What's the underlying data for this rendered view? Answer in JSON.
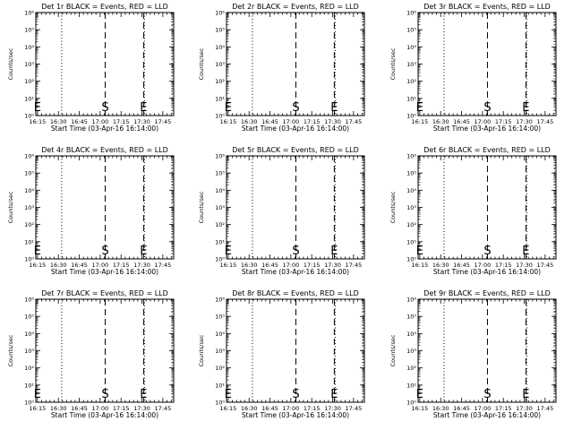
{
  "figure": {
    "background": "#ffffff",
    "ink": "#000000"
  },
  "chart_data": [
    {
      "type": "line",
      "title": "Det 1r BLACK = Events, RED = LLD",
      "xlabel": "Start Time (03-Apr-16 16:14:00)",
      "ylabel": "Counts/sec",
      "x_tick_labels": [
        "16:15",
        "16:30",
        "16:45",
        "17:00",
        "17:15",
        "17:30",
        "17:45"
      ],
      "x_ticks_minutes": [
        16.25,
        16.5,
        16.75,
        17.0,
        17.25,
        17.5,
        17.75
      ],
      "xlim": [
        16.23,
        17.88
      ],
      "y_scale": "log",
      "ylim": [
        1,
        1000000.0
      ],
      "y_tick_labels": [
        "10⁰",
        "10¹",
        "10²",
        "10³",
        "10⁴",
        "10⁵",
        "10⁶"
      ],
      "dotted_lines": [
        16.54,
        17.53,
        17.86
      ],
      "dashed_lines": [
        17.06,
        17.52
      ],
      "markers": [
        {
          "label": "E",
          "x": 16.25
        },
        {
          "label": "S",
          "x": 17.06
        },
        {
          "label": "E",
          "x": 17.52
        }
      ],
      "series": []
    },
    {
      "type": "line",
      "title": "Det 2r BLACK = Events, RED = LLD",
      "xlabel": "Start Time (03-Apr-16 16:14:00)",
      "ylabel": "Counts/sec",
      "x_tick_labels": [
        "16:15",
        "16:30",
        "16:45",
        "17:00",
        "17:15",
        "17:30",
        "17:45"
      ],
      "x_ticks_minutes": [
        16.25,
        16.5,
        16.75,
        17.0,
        17.25,
        17.5,
        17.75
      ],
      "xlim": [
        16.23,
        17.88
      ],
      "y_scale": "log",
      "ylim": [
        1,
        1000000.0
      ],
      "y_tick_labels": [
        "10⁰",
        "10¹",
        "10²",
        "10³",
        "10⁴",
        "10⁵",
        "10⁶"
      ],
      "dotted_lines": [
        16.54,
        17.53,
        17.86
      ],
      "dashed_lines": [
        17.06,
        17.52
      ],
      "markers": [
        {
          "label": "E",
          "x": 16.25
        },
        {
          "label": "S",
          "x": 17.06
        },
        {
          "label": "E",
          "x": 17.52
        }
      ],
      "series": []
    },
    {
      "type": "line",
      "title": "Det 3r BLACK = Events, RED = LLD",
      "xlabel": "Start Time (03-Apr-16 16:14:00)",
      "ylabel": "Counts/sec",
      "x_tick_labels": [
        "16:15",
        "16:30",
        "16:45",
        "17:00",
        "17:15",
        "17:30",
        "17:45"
      ],
      "x_ticks_minutes": [
        16.25,
        16.5,
        16.75,
        17.0,
        17.25,
        17.5,
        17.75
      ],
      "xlim": [
        16.23,
        17.88
      ],
      "y_scale": "log",
      "ylim": [
        1,
        1000000.0
      ],
      "y_tick_labels": [
        "10⁰",
        "10¹",
        "10²",
        "10³",
        "10⁴",
        "10⁵",
        "10⁶"
      ],
      "dotted_lines": [
        16.54,
        17.53,
        17.86
      ],
      "dashed_lines": [
        17.06,
        17.52
      ],
      "markers": [
        {
          "label": "E",
          "x": 16.25
        },
        {
          "label": "S",
          "x": 17.06
        },
        {
          "label": "E",
          "x": 17.52
        }
      ],
      "series": []
    },
    {
      "type": "line",
      "title": "Det 4r BLACK = Events, RED = LLD",
      "xlabel": "Start Time (03-Apr-16 16:14:00)",
      "ylabel": "Counts/sec",
      "x_tick_labels": [
        "16:15",
        "16:30",
        "16:45",
        "17:00",
        "17:15",
        "17:30",
        "17:45"
      ],
      "x_ticks_minutes": [
        16.25,
        16.5,
        16.75,
        17.0,
        17.25,
        17.5,
        17.75
      ],
      "xlim": [
        16.23,
        17.88
      ],
      "y_scale": "log",
      "ylim": [
        1,
        1000000.0
      ],
      "y_tick_labels": [
        "10⁰",
        "10¹",
        "10²",
        "10³",
        "10⁴",
        "10⁵",
        "10⁶"
      ],
      "dotted_lines": [
        16.54,
        17.53,
        17.86
      ],
      "dashed_lines": [
        17.06,
        17.52
      ],
      "markers": [
        {
          "label": "E",
          "x": 16.25
        },
        {
          "label": "S",
          "x": 17.06
        },
        {
          "label": "E",
          "x": 17.52
        }
      ],
      "series": []
    },
    {
      "type": "line",
      "title": "Det 5r BLACK = Events, RED = LLD",
      "xlabel": "Start Time (03-Apr-16 16:14:00)",
      "ylabel": "Counts/sec",
      "x_tick_labels": [
        "16:15",
        "16:30",
        "16:45",
        "17:00",
        "17:15",
        "17:30",
        "17:45"
      ],
      "x_ticks_minutes": [
        16.25,
        16.5,
        16.75,
        17.0,
        17.25,
        17.5,
        17.75
      ],
      "xlim": [
        16.23,
        17.88
      ],
      "y_scale": "log",
      "ylim": [
        1,
        1000000.0
      ],
      "y_tick_labels": [
        "10⁰",
        "10¹",
        "10²",
        "10³",
        "10⁴",
        "10⁵",
        "10⁶"
      ],
      "dotted_lines": [
        16.54,
        17.53,
        17.86
      ],
      "dashed_lines": [
        17.06,
        17.52
      ],
      "markers": [
        {
          "label": "E",
          "x": 16.25
        },
        {
          "label": "S",
          "x": 17.06
        },
        {
          "label": "E",
          "x": 17.52
        }
      ],
      "series": []
    },
    {
      "type": "line",
      "title": "Det 6r BLACK = Events, RED = LLD",
      "xlabel": "Start Time (03-Apr-16 16:14:00)",
      "ylabel": "Counts/sec",
      "x_tick_labels": [
        "16:15",
        "16:30",
        "16:45",
        "17:00",
        "17:15",
        "17:30",
        "17:45"
      ],
      "x_ticks_minutes": [
        16.25,
        16.5,
        16.75,
        17.0,
        17.25,
        17.5,
        17.75
      ],
      "xlim": [
        16.23,
        17.88
      ],
      "y_scale": "log",
      "ylim": [
        1,
        1000000.0
      ],
      "y_tick_labels": [
        "10⁰",
        "10¹",
        "10²",
        "10³",
        "10⁴",
        "10⁵",
        "10⁶"
      ],
      "dotted_lines": [
        16.54,
        17.53,
        17.86
      ],
      "dashed_lines": [
        17.06,
        17.52
      ],
      "markers": [
        {
          "label": "E",
          "x": 16.25
        },
        {
          "label": "S",
          "x": 17.06
        },
        {
          "label": "E",
          "x": 17.52
        }
      ],
      "series": []
    },
    {
      "type": "line",
      "title": "Det 7r BLACK = Events, RED = LLD",
      "xlabel": "Start Time (03-Apr-16 16:14:00)",
      "ylabel": "Counts/sec",
      "x_tick_labels": [
        "16:15",
        "16:30",
        "16:45",
        "17:00",
        "17:15",
        "17:30",
        "17:45"
      ],
      "x_ticks_minutes": [
        16.25,
        16.5,
        16.75,
        17.0,
        17.25,
        17.5,
        17.75
      ],
      "xlim": [
        16.23,
        17.88
      ],
      "y_scale": "log",
      "ylim": [
        1,
        1000000.0
      ],
      "y_tick_labels": [
        "10⁰",
        "10¹",
        "10²",
        "10³",
        "10⁴",
        "10⁵",
        "10⁶"
      ],
      "dotted_lines": [
        16.54,
        17.53,
        17.86
      ],
      "dashed_lines": [
        17.06,
        17.52
      ],
      "markers": [
        {
          "label": "E",
          "x": 16.25
        },
        {
          "label": "S",
          "x": 17.06
        },
        {
          "label": "E",
          "x": 17.52
        }
      ],
      "series": []
    },
    {
      "type": "line",
      "title": "Det 8r BLACK = Events, RED = LLD",
      "xlabel": "Start Time (03-Apr-16 16:14:00)",
      "ylabel": "Counts/sec",
      "x_tick_labels": [
        "16:15",
        "16:30",
        "16:45",
        "17:00",
        "17:15",
        "17:30",
        "17:45"
      ],
      "x_ticks_minutes": [
        16.25,
        16.5,
        16.75,
        17.0,
        17.25,
        17.5,
        17.75
      ],
      "xlim": [
        16.23,
        17.88
      ],
      "y_scale": "log",
      "ylim": [
        1,
        1000000.0
      ],
      "y_tick_labels": [
        "10⁰",
        "10¹",
        "10²",
        "10³",
        "10⁴",
        "10⁵",
        "10⁶"
      ],
      "dotted_lines": [
        16.54,
        17.53,
        17.86
      ],
      "dashed_lines": [
        17.06,
        17.52
      ],
      "markers": [
        {
          "label": "E",
          "x": 16.25
        },
        {
          "label": "S",
          "x": 17.06
        },
        {
          "label": "E",
          "x": 17.52
        }
      ],
      "series": []
    },
    {
      "type": "line",
      "title": "Det 9r BLACK = Events, RED = LLD",
      "xlabel": "Start Time (03-Apr-16 16:14:00)",
      "ylabel": "Counts/sec",
      "x_tick_labels": [
        "16:15",
        "16:30",
        "16:45",
        "17:00",
        "17:15",
        "17:30",
        "17:45"
      ],
      "x_ticks_minutes": [
        16.25,
        16.5,
        16.75,
        17.0,
        17.25,
        17.5,
        17.75
      ],
      "xlim": [
        16.23,
        17.88
      ],
      "y_scale": "log",
      "ylim": [
        1,
        1000000.0
      ],
      "y_tick_labels": [
        "10⁰",
        "10¹",
        "10²",
        "10³",
        "10⁴",
        "10⁵",
        "10⁶"
      ],
      "dotted_lines": [
        16.54,
        17.53,
        17.86
      ],
      "dashed_lines": [
        17.06,
        17.52
      ],
      "markers": [
        {
          "label": "E",
          "x": 16.25
        },
        {
          "label": "S",
          "x": 17.06
        },
        {
          "label": "E",
          "x": 17.52
        }
      ],
      "series": []
    }
  ]
}
